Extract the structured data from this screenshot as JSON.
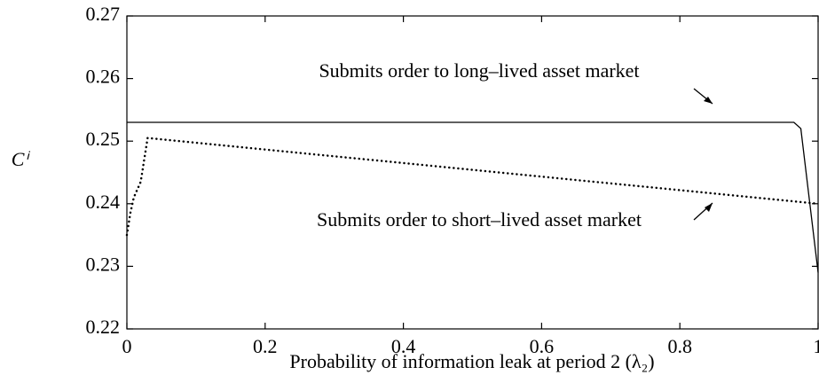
{
  "chart_data": {
    "type": "line",
    "xlabel": "Probability of information leak at period 2 (λ₂)",
    "ylabel": "Cⁱ",
    "annotations": [
      "Submits order to long–lived asset market",
      "Submits order to short–lived asset market"
    ],
    "xlim": [
      0,
      1
    ],
    "xticks": [
      0,
      0.2,
      0.4,
      0.6,
      0.8,
      1
    ],
    "ylim": [
      0.22,
      0.27
    ],
    "yticks": [
      0.22,
      0.23,
      0.24,
      0.25,
      0.26,
      0.27
    ],
    "series": [
      {
        "color": "#000000",
        "style": "solid",
        "x": [
          0,
          0.965,
          0.975,
          1
        ],
        "values": [
          0.253,
          0.253,
          0.252,
          0.229
        ]
      },
      {
        "color": "#000000",
        "style": "dotted",
        "x": [
          0,
          0.005,
          0.01,
          0.02,
          0.03,
          1
        ],
        "values": [
          0.235,
          0.2385,
          0.241,
          0.2435,
          0.2505,
          0.24
        ]
      }
    ]
  }
}
